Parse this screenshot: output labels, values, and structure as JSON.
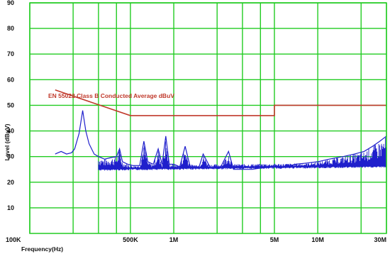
{
  "chart_data": {
    "type": "line",
    "xlabel": "Frequency(Hz)",
    "ylabel": "Level (dBμV)",
    "x_scale": "log",
    "xlim": [
      100000,
      30000000
    ],
    "ylim": [
      0,
      90
    ],
    "grid": true,
    "grid_color": "#22cc22",
    "x_ticks": [
      {
        "value": 100000,
        "label": "100K"
      },
      {
        "value": 500000,
        "label": "500K"
      },
      {
        "value": 1000000,
        "label": "1M"
      },
      {
        "value": 5000000,
        "label": "5M"
      },
      {
        "value": 10000000,
        "label": "10M"
      },
      {
        "value": 30000000,
        "label": "30M"
      }
    ],
    "x_minor_grid": [
      200000,
      300000,
      400000,
      2000000,
      3000000,
      4000000,
      20000000
    ],
    "y_ticks": [
      {
        "value": 10,
        "label": "10"
      },
      {
        "value": 20,
        "label": "20"
      },
      {
        "value": 30,
        "label": "30"
      },
      {
        "value": 40,
        "label": "40"
      },
      {
        "value": 50,
        "label": "50"
      },
      {
        "value": 60,
        "label": "60"
      },
      {
        "value": 70,
        "label": "70"
      },
      {
        "value": 80,
        "label": "80"
      },
      {
        "value": 90,
        "label": "90"
      }
    ],
    "annotation": "EN 55022 Class B Conducted Average dBuV",
    "limit_line": {
      "color": "#c0392b",
      "points": [
        [
          150000,
          56
        ],
        [
          500000,
          46
        ],
        [
          5000000,
          46
        ],
        [
          5000000,
          50
        ],
        [
          30000000,
          50
        ]
      ]
    },
    "measurement": {
      "color": "#1f1fcc",
      "points": [
        [
          150000,
          31
        ],
        [
          165000,
          32
        ],
        [
          180000,
          31
        ],
        [
          195000,
          31.5
        ],
        [
          205000,
          33
        ],
        [
          220000,
          39
        ],
        [
          233000,
          48
        ],
        [
          245000,
          40
        ],
        [
          258000,
          35
        ],
        [
          280000,
          31
        ],
        [
          300000,
          30
        ],
        [
          330000,
          29
        ],
        [
          360000,
          29.5
        ],
        [
          400000,
          30
        ],
        [
          420000,
          33
        ],
        [
          440000,
          28
        ],
        [
          480000,
          27
        ],
        [
          520000,
          26.5
        ],
        [
          580000,
          26.5
        ],
        [
          620000,
          36
        ],
        [
          660000,
          28
        ],
        [
          720000,
          27
        ],
        [
          780000,
          33
        ],
        [
          830000,
          27
        ],
        [
          880000,
          38
        ],
        [
          930000,
          27
        ],
        [
          1000000,
          27
        ],
        [
          1100000,
          26
        ],
        [
          1200000,
          34
        ],
        [
          1300000,
          26
        ],
        [
          1500000,
          26
        ],
        [
          1600000,
          31
        ],
        [
          1800000,
          25.5
        ],
        [
          2100000,
          25.5
        ],
        [
          2400000,
          32
        ],
        [
          2600000,
          25
        ],
        [
          3000000,
          25
        ],
        [
          3500000,
          25
        ],
        [
          4000000,
          25.5
        ],
        [
          5000000,
          26
        ],
        [
          6000000,
          26
        ],
        [
          7000000,
          27
        ],
        [
          8500000,
          27.5
        ],
        [
          10000000,
          28
        ],
        [
          12000000,
          29
        ],
        [
          15000000,
          30
        ],
        [
          18000000,
          31
        ],
        [
          21000000,
          32
        ],
        [
          24000000,
          34
        ],
        [
          27000000,
          36
        ],
        [
          30000000,
          38
        ]
      ]
    }
  }
}
